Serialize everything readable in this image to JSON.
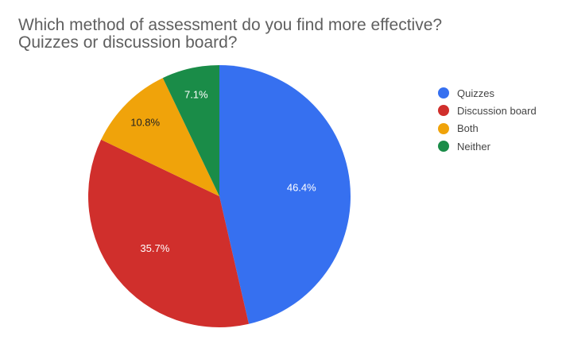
{
  "chart_data": {
    "type": "pie",
    "title": "Which method of assessment do you find more effective? Quizzes or discussion board?",
    "title_lines": [
      "Which method of assessment do you find more effective?",
      "Quizzes or discussion board?"
    ],
    "categories": [
      "Quizzes",
      "Discussion board",
      "Both",
      "Neither"
    ],
    "values": [
      46.4,
      35.7,
      10.8,
      7.1
    ],
    "labels": [
      "46.4%",
      "35.7%",
      "10.8%",
      "7.1%"
    ],
    "colors": [
      "#3670f0",
      "#d02f2c",
      "#f0a30a",
      "#1a8c48"
    ],
    "label_colors": [
      "#ffffff",
      "#ffffff",
      "#222222",
      "#ffffff"
    ],
    "legend_position": "right",
    "start_angle_deg": 0,
    "direction": "clockwise"
  }
}
